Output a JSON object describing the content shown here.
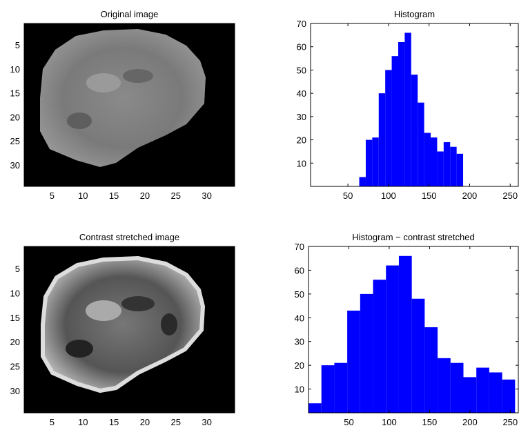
{
  "chart_data": [
    {
      "type": "image",
      "title": "Original image",
      "xlim": [
        0.5,
        34.5
      ],
      "ylim": [
        34.5,
        0.5
      ],
      "xticks": [
        5,
        10,
        15,
        20,
        25,
        30
      ],
      "yticks": [
        5,
        10,
        15,
        20,
        25,
        30
      ]
    },
    {
      "type": "histogram",
      "title": "Histogram",
      "color": "#0000ff",
      "bins": [
        64,
        72,
        80,
        88,
        96,
        104,
        112,
        120,
        128,
        136,
        144,
        152,
        160,
        168,
        176,
        184,
        192
      ],
      "values": [
        4,
        20,
        21,
        40,
        50,
        56,
        62,
        66,
        48,
        36,
        23,
        21,
        15,
        19,
        17,
        14
      ],
      "xlim": [
        4,
        260
      ],
      "ylim": [
        0,
        70
      ],
      "xticks": [
        50,
        100,
        150,
        200,
        250
      ],
      "yticks": [
        10,
        20,
        30,
        40,
        50,
        60,
        70
      ]
    },
    {
      "type": "image",
      "title": "Contrast stretched image",
      "xlim": [
        0.5,
        34.5
      ],
      "ylim": [
        34.5,
        0.5
      ],
      "xticks": [
        5,
        10,
        15,
        20,
        25,
        30
      ],
      "yticks": [
        5,
        10,
        15,
        20,
        25,
        30
      ]
    },
    {
      "type": "histogram",
      "title": "Histogram − contrast stretched",
      "color": "#0000ff",
      "bins": [
        0,
        16,
        32,
        48,
        64,
        80,
        96,
        112,
        128,
        144,
        160,
        176,
        192,
        208,
        224,
        240,
        256
      ],
      "values": [
        4,
        20,
        21,
        43,
        50,
        56,
        62,
        66,
        48,
        36,
        23,
        21,
        15,
        19,
        17,
        14
      ],
      "xlim": [
        0,
        260
      ],
      "ylim": [
        0,
        70
      ],
      "xticks": [
        50,
        100,
        150,
        200,
        250
      ],
      "yticks": [
        10,
        20,
        30,
        40,
        50,
        60,
        70
      ]
    }
  ]
}
